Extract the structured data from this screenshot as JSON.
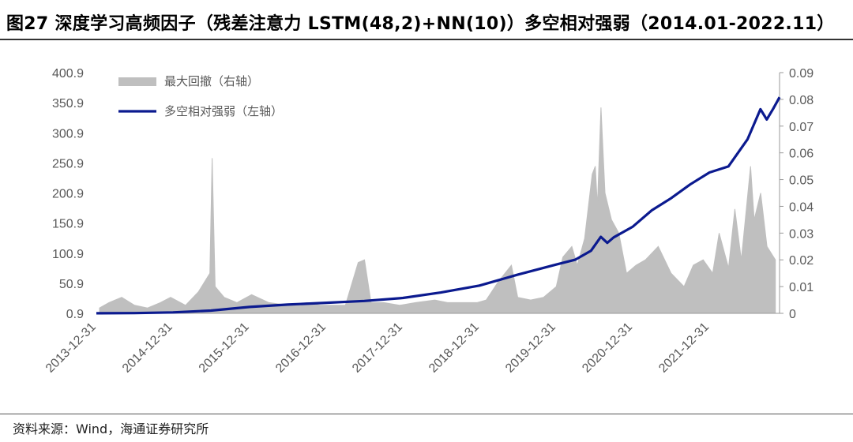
{
  "title": "图27 深度学习高频因子（残差注意力 LSTM(48,2)+NN(10)）多空相对强弱（2014.01-2022.11）",
  "source": "资料来源：Wind，海通证券研究所",
  "colors": {
    "line": "#0b1a8f",
    "bars": "#bfbfbf",
    "axis": "#999999",
    "text": "#595959"
  },
  "chart_data": {
    "type": "line+area",
    "legend_position": "top-left",
    "grid": false,
    "x_ticks": [
      "2013-12-31",
      "2014-12-31",
      "2015-12-31",
      "2016-12-31",
      "2017-12-31",
      "2018-12-31",
      "2019-12-31",
      "2020-12-31",
      "2021-12-31"
    ],
    "y_left": {
      "ticks": [
        "0.9",
        "50.9",
        "100.9",
        "150.9",
        "200.9",
        "250.9",
        "300.9",
        "350.9",
        "400.9"
      ],
      "range": [
        0.9,
        400.9
      ]
    },
    "y_right": {
      "ticks": [
        "0",
        "0.01",
        "0.02",
        "0.03",
        "0.04",
        "0.05",
        "0.06",
        "0.07",
        "0.08",
        "0.09"
      ],
      "range": [
        0,
        0.09
      ]
    },
    "series": [
      {
        "name": "最大回撤（右轴）",
        "type": "area",
        "axis": "right",
        "points": [
          [
            "2014-01-15",
            0.002
          ],
          [
            "2014-03-01",
            0.004
          ],
          [
            "2014-05-01",
            0.006
          ],
          [
            "2014-07-01",
            0.003
          ],
          [
            "2014-09-01",
            0.002
          ],
          [
            "2014-11-01",
            0.004
          ],
          [
            "2014-12-20",
            0.006
          ],
          [
            "2015-03-01",
            0.003
          ],
          [
            "2015-05-01",
            0.008
          ],
          [
            "2015-06-25",
            0.015
          ],
          [
            "2015-07-06",
            0.058
          ],
          [
            "2015-07-20",
            0.01
          ],
          [
            "2015-09-01",
            0.006
          ],
          [
            "2015-11-01",
            0.004
          ],
          [
            "2016-01-10",
            0.007
          ],
          [
            "2016-04-01",
            0.004
          ],
          [
            "2016-07-01",
            0.003
          ],
          [
            "2016-10-01",
            0.004
          ],
          [
            "2016-12-01",
            0.003
          ],
          [
            "2017-04-01",
            0.003
          ],
          [
            "2017-06-01",
            0.019
          ],
          [
            "2017-07-01",
            0.02
          ],
          [
            "2017-08-01",
            0.004
          ],
          [
            "2017-10-01",
            0.004
          ],
          [
            "2017-12-15",
            0.003
          ],
          [
            "2018-03-01",
            0.004
          ],
          [
            "2018-06-01",
            0.005
          ],
          [
            "2018-08-01",
            0.004
          ],
          [
            "2018-10-01",
            0.004
          ],
          [
            "2018-12-20",
            0.004
          ],
          [
            "2019-02-01",
            0.005
          ],
          [
            "2019-04-01",
            0.012
          ],
          [
            "2019-06-01",
            0.018
          ],
          [
            "2019-07-01",
            0.006
          ],
          [
            "2019-09-01",
            0.005
          ],
          [
            "2019-11-01",
            0.006
          ],
          [
            "2020-01-01",
            0.01
          ],
          [
            "2020-02-01",
            0.021
          ],
          [
            "2020-03-15",
            0.025
          ],
          [
            "2020-04-10",
            0.018
          ],
          [
            "2020-05-15",
            0.028
          ],
          [
            "2020-06-20",
            0.052
          ],
          [
            "2020-07-05",
            0.055
          ],
          [
            "2020-07-15",
            0.04
          ],
          [
            "2020-08-01",
            0.077
          ],
          [
            "2020-08-20",
            0.045
          ],
          [
            "2020-09-20",
            0.035
          ],
          [
            "2020-10-25",
            0.03
          ],
          [
            "2020-12-01",
            0.015
          ],
          [
            "2021-01-15",
            0.018
          ],
          [
            "2021-03-01",
            0.02
          ],
          [
            "2021-05-01",
            0.025
          ],
          [
            "2021-07-01",
            0.015
          ],
          [
            "2021-09-01",
            0.01
          ],
          [
            "2021-10-15",
            0.018
          ],
          [
            "2021-12-01",
            0.02
          ],
          [
            "2022-01-15",
            0.015
          ],
          [
            "2022-02-15",
            0.03
          ],
          [
            "2022-04-01",
            0.017
          ],
          [
            "2022-05-01",
            0.039
          ],
          [
            "2022-06-01",
            0.02
          ],
          [
            "2022-07-15",
            0.055
          ],
          [
            "2022-08-01",
            0.035
          ],
          [
            "2022-09-01",
            0.045
          ],
          [
            "2022-10-01",
            0.025
          ],
          [
            "2022-11-10",
            0.02
          ]
        ]
      },
      {
        "name": "多空相对强弱（左轴）",
        "type": "line",
        "axis": "left",
        "points": [
          [
            "2013-12-31",
            1.0
          ],
          [
            "2014-06-30",
            1.3
          ],
          [
            "2014-12-31",
            2.5
          ],
          [
            "2015-06-30",
            5.5
          ],
          [
            "2015-12-31",
            11.5
          ],
          [
            "2016-06-30",
            15.5
          ],
          [
            "2016-12-31",
            18.5
          ],
          [
            "2017-06-30",
            21.5
          ],
          [
            "2017-12-31",
            26.5
          ],
          [
            "2018-06-30",
            35.5
          ],
          [
            "2018-12-31",
            47.0
          ],
          [
            "2019-06-30",
            65.0
          ],
          [
            "2019-12-31",
            82.0
          ],
          [
            "2020-03-31",
            90.0
          ],
          [
            "2020-06-15",
            105.0
          ],
          [
            "2020-07-31",
            128.0
          ],
          [
            "2020-08-31",
            118.0
          ],
          [
            "2020-09-30",
            127.0
          ],
          [
            "2020-12-31",
            145.0
          ],
          [
            "2021-03-31",
            172.0
          ],
          [
            "2021-06-30",
            192.0
          ],
          [
            "2021-09-30",
            215.0
          ],
          [
            "2021-12-31",
            235.0
          ],
          [
            "2022-03-31",
            245.0
          ],
          [
            "2022-06-30",
            290.0
          ],
          [
            "2022-08-31",
            340.0
          ],
          [
            "2022-09-30",
            323.0
          ],
          [
            "2022-10-31",
            341.0
          ],
          [
            "2022-11-30",
            360.0
          ]
        ]
      }
    ]
  }
}
